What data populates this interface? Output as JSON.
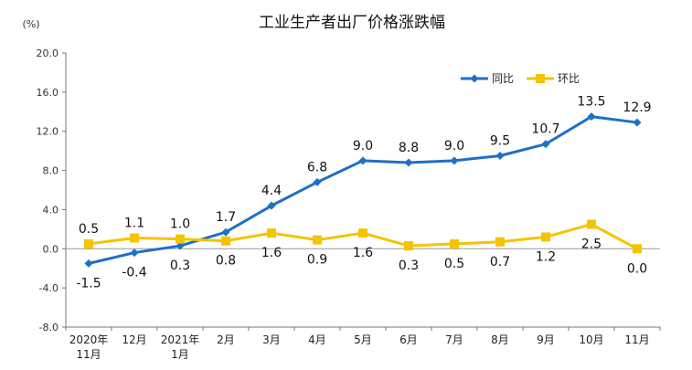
{
  "chart_data": {
    "type": "line",
    "title": "工业生产者出厂价格涨跌幅",
    "unit_label": "(%)",
    "ylim": [
      -8.0,
      20.0
    ],
    "yticks": [
      "20.0",
      "16.0",
      "12.0",
      "8.0",
      "4.0",
      "0.0",
      "-4.0",
      "-8.0"
    ],
    "categories": [
      [
        "2020年",
        "11月"
      ],
      [
        "12月"
      ],
      [
        "2021年",
        "1月"
      ],
      [
        "2月"
      ],
      [
        "3月"
      ],
      [
        "4月"
      ],
      [
        "5月"
      ],
      [
        "6月"
      ],
      [
        "7月"
      ],
      [
        "8月"
      ],
      [
        "9月"
      ],
      [
        "10月"
      ],
      [
        "11月"
      ]
    ],
    "series": [
      {
        "name": "同比",
        "color": "#1f6fc5",
        "marker": "diamond",
        "values": [
          -1.5,
          -0.4,
          0.3,
          1.7,
          4.4,
          6.8,
          9.0,
          8.8,
          9.0,
          9.5,
          10.7,
          13.5,
          12.9
        ],
        "labels": [
          "-1.5",
          "-0.4",
          "0.3",
          "1.7",
          "4.4",
          "6.8",
          "9.0",
          "8.8",
          "9.0",
          "9.5",
          "10.7",
          "13.5",
          "12.9"
        ],
        "label_pos": [
          "below",
          "below",
          "below",
          "above",
          "above",
          "above",
          "above",
          "above",
          "above",
          "above",
          "above",
          "above",
          "above"
        ]
      },
      {
        "name": "环比",
        "color": "#f5c400",
        "marker": "square",
        "values": [
          0.5,
          1.1,
          1.0,
          0.8,
          1.6,
          0.9,
          1.6,
          0.3,
          0.5,
          0.7,
          1.2,
          2.5,
          0.0
        ],
        "labels": [
          "0.5",
          "1.1",
          "1.0",
          "0.8",
          "1.6",
          "0.9",
          "1.6",
          "0.3",
          "0.5",
          "0.7",
          "1.2",
          "2.5",
          "0.0"
        ],
        "label_pos": [
          "above",
          "above",
          "above",
          "below",
          "below",
          "below",
          "below",
          "below",
          "below",
          "below",
          "below",
          "below",
          "below"
        ]
      }
    ],
    "legend": {
      "position": "top-right",
      "entries": [
        "同比",
        "环比"
      ]
    },
    "grid": false
  }
}
